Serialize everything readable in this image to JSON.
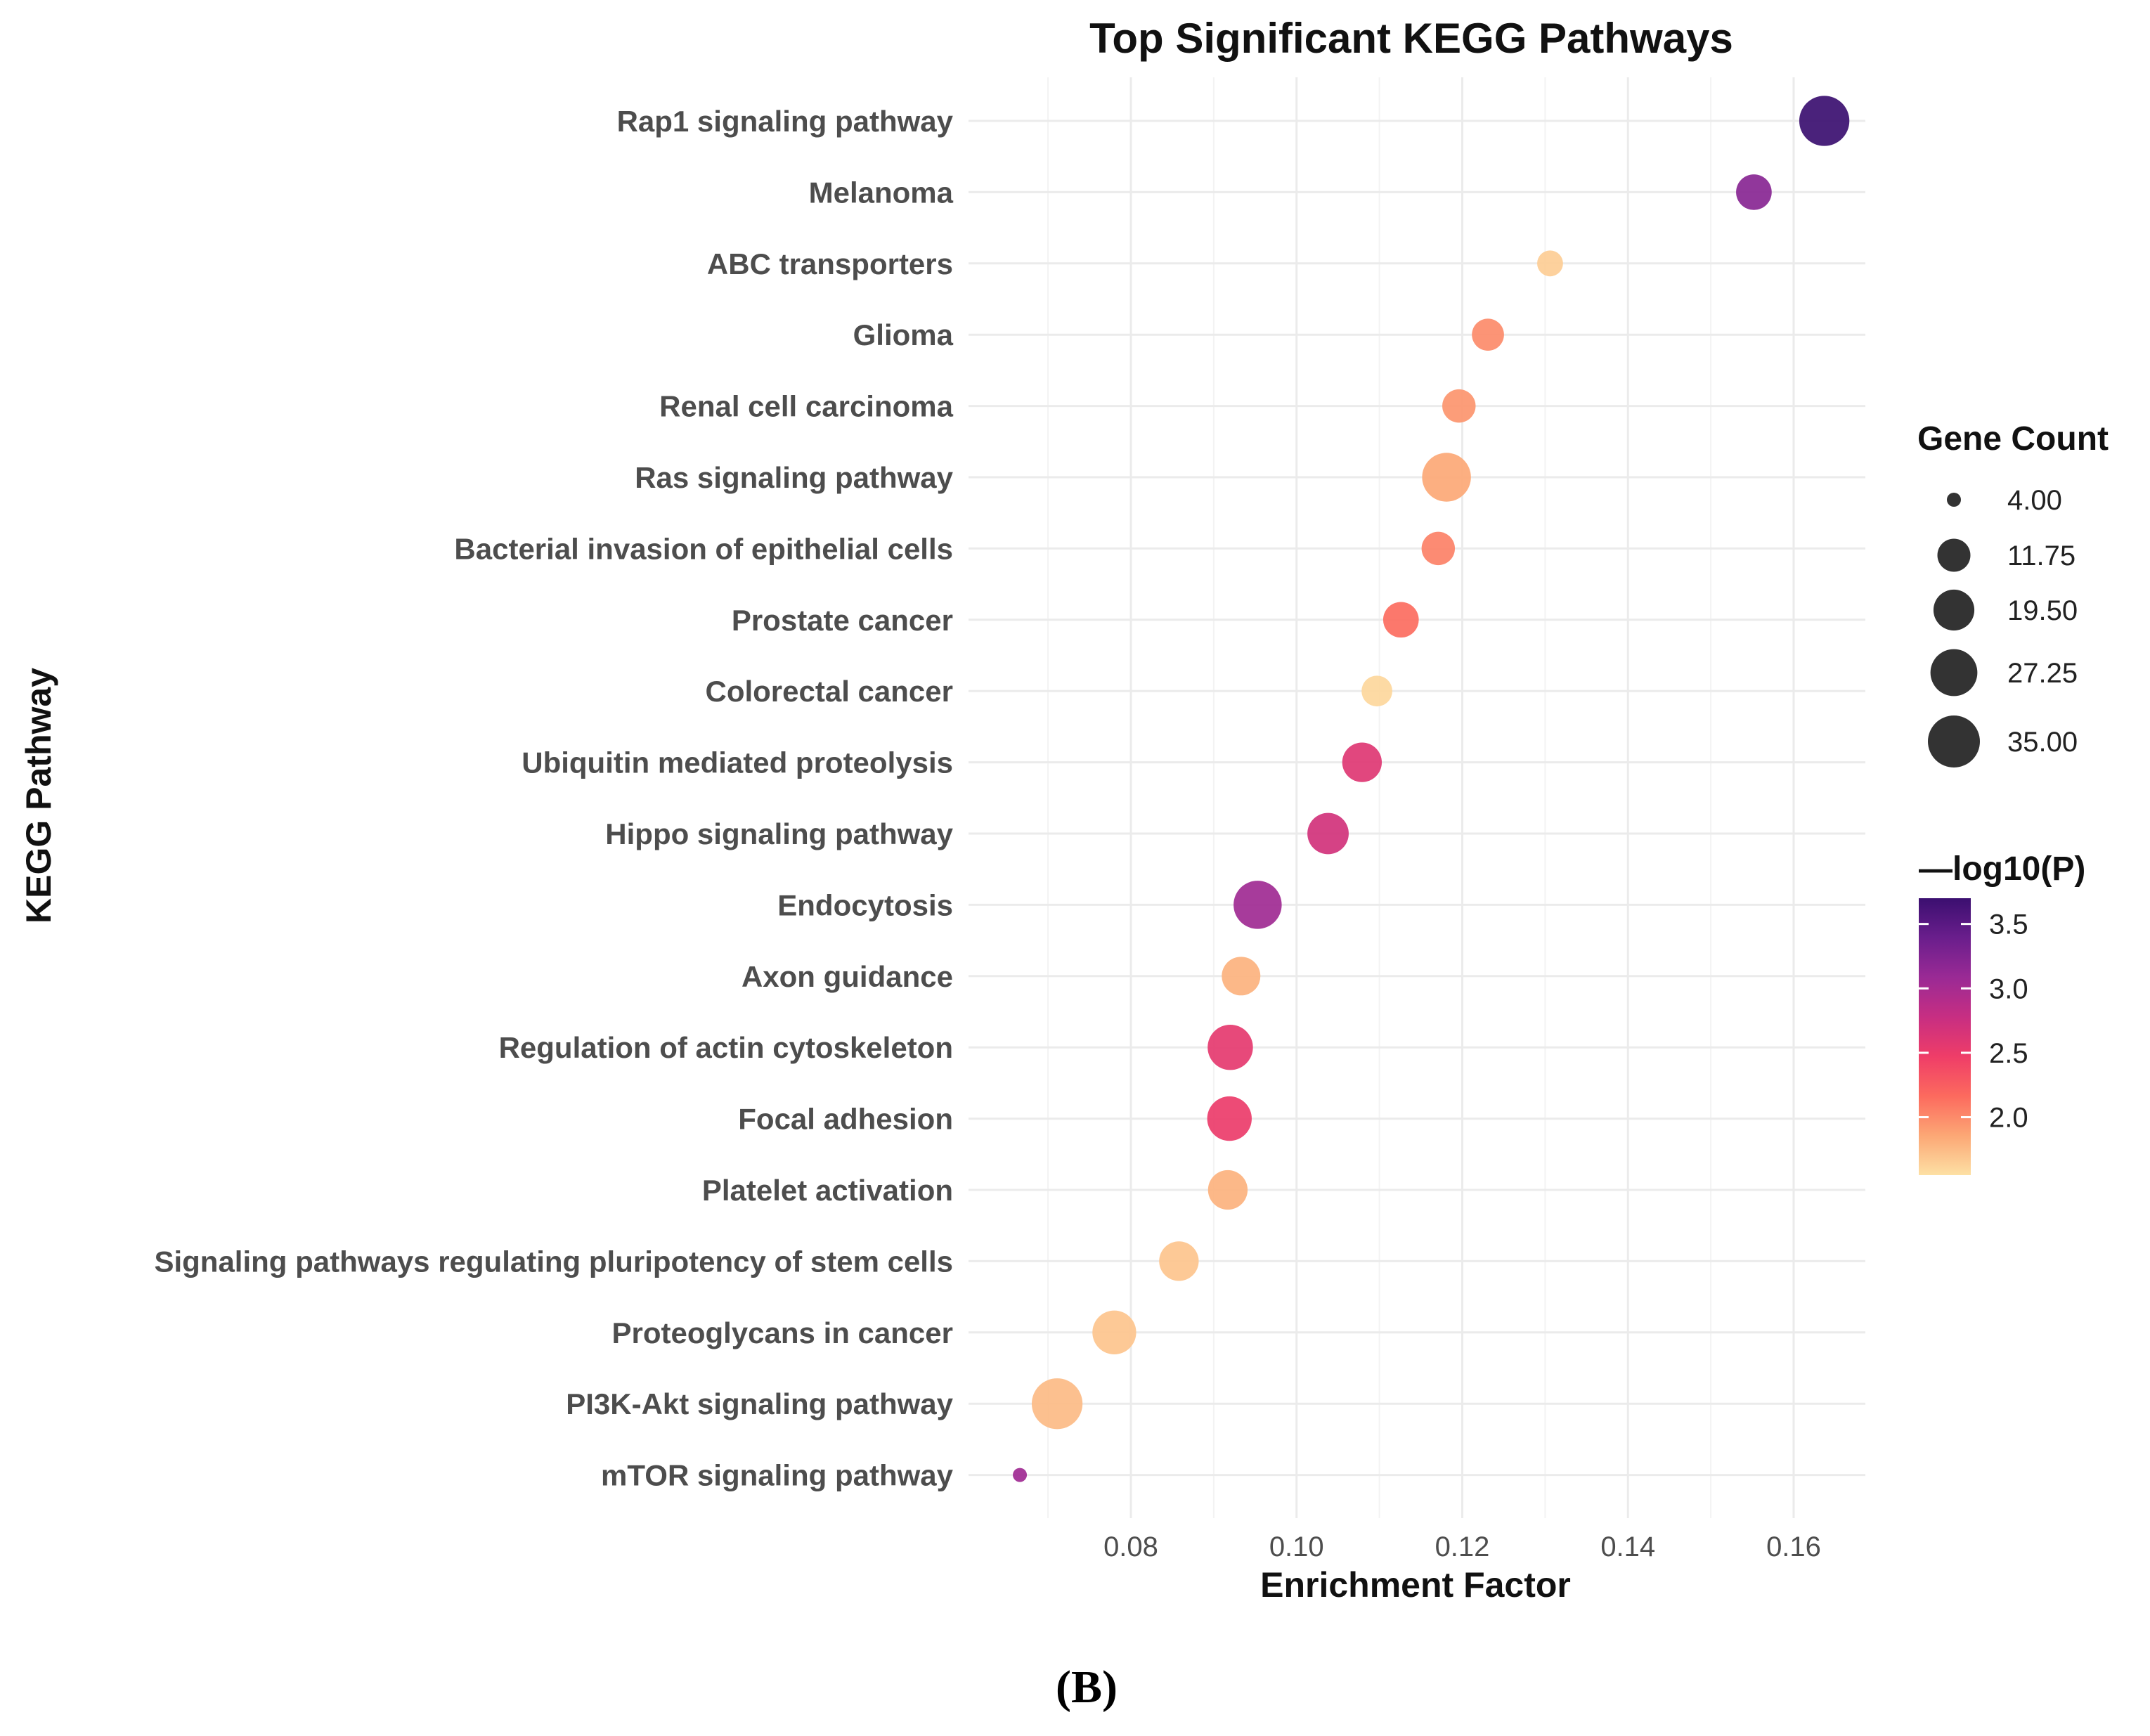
{
  "chart_data": {
    "type": "scatter",
    "title": "Top Significant KEGG Pathways",
    "xlabel": "Enrichment Factor",
    "ylabel": "KEGG Pathway",
    "xlim": [
      0.064,
      0.168
    ],
    "x_ticks": [
      0.08,
      0.1,
      0.12,
      0.14,
      0.16
    ],
    "x_tick_labels": [
      "0.08",
      "0.10",
      "0.12",
      "0.14",
      "0.16"
    ],
    "grid": true,
    "panel_label": "(B)",
    "size_legend": {
      "title": "Gene Count",
      "values": [
        4.0,
        11.75,
        19.5,
        27.25,
        35.0
      ],
      "labels": [
        "4.00",
        "11.75",
        "19.50",
        "27.25",
        "35.00"
      ],
      "color": "#333333"
    },
    "color_legend": {
      "title": "—log10(P)",
      "range": [
        1.55,
        3.7
      ],
      "ticks": [
        3.5,
        3.0,
        2.5,
        2.0
      ],
      "tick_labels": [
        "3.5",
        "3.0",
        "2.5",
        "2.0"
      ],
      "palette": [
        "#FDE0A4",
        "#FCA775",
        "#FC6A5E",
        "#EF3D68",
        "#C72E82",
        "#9A2A95",
        "#6A1E8C",
        "#3B0F70"
      ]
    },
    "points": [
      {
        "pathway": "Rap1 signaling pathway",
        "enrichment": 0.1637,
        "count": 32,
        "neglog10p": 3.7
      },
      {
        "pathway": "Melanoma",
        "enrichment": 0.1552,
        "count": 14,
        "neglog10p": 3.2
      },
      {
        "pathway": "ABC transporters",
        "enrichment": 0.1306,
        "count": 7,
        "neglog10p": 1.65
      },
      {
        "pathway": "Glioma",
        "enrichment": 0.1231,
        "count": 11,
        "neglog10p": 2.0
      },
      {
        "pathway": "Renal cell carcinoma",
        "enrichment": 0.1196,
        "count": 12,
        "neglog10p": 1.95
      },
      {
        "pathway": "Ras signaling pathway",
        "enrichment": 0.1181,
        "count": 30,
        "neglog10p": 1.85
      },
      {
        "pathway": "Bacterial invasion of epithelial cells",
        "enrichment": 0.1171,
        "count": 12,
        "neglog10p": 2.05
      },
      {
        "pathway": "Prostate cancer",
        "enrichment": 0.1126,
        "count": 14,
        "neglog10p": 2.15
      },
      {
        "pathway": "Colorectal cancer",
        "enrichment": 0.1097,
        "count": 10,
        "neglog10p": 1.6
      },
      {
        "pathway": "Ubiquitin mediated proteolysis",
        "enrichment": 0.1079,
        "count": 18,
        "neglog10p": 2.6
      },
      {
        "pathway": "Hippo signaling pathway",
        "enrichment": 0.1038,
        "count": 20,
        "neglog10p": 2.7
      },
      {
        "pathway": "Endocytosis",
        "enrichment": 0.0953,
        "count": 29,
        "neglog10p": 3.05
      },
      {
        "pathway": "Axon guidance",
        "enrichment": 0.0933,
        "count": 17,
        "neglog10p": 1.8
      },
      {
        "pathway": "Regulation of actin cytoskeleton",
        "enrichment": 0.092,
        "count": 25,
        "neglog10p": 2.55
      },
      {
        "pathway": "Focal adhesion",
        "enrichment": 0.0919,
        "count": 24,
        "neglog10p": 2.5
      },
      {
        "pathway": "Platelet activation",
        "enrichment": 0.0917,
        "count": 18,
        "neglog10p": 1.8
      },
      {
        "pathway": "Signaling pathways regulating pluripotency of stem cells",
        "enrichment": 0.0858,
        "count": 18,
        "neglog10p": 1.7
      },
      {
        "pathway": "Proteoglycans in cancer",
        "enrichment": 0.078,
        "count": 23,
        "neglog10p": 1.7
      },
      {
        "pathway": "PI3K-Akt signaling pathway",
        "enrichment": 0.0711,
        "count": 33,
        "neglog10p": 1.75
      },
      {
        "pathway": "mTOR signaling pathway",
        "enrichment": 0.0666,
        "count": 4,
        "neglog10p": 3.05
      }
    ]
  }
}
